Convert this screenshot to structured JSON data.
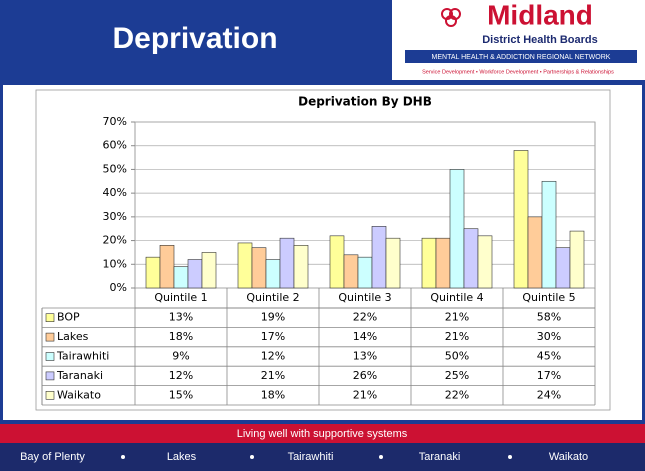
{
  "header": {
    "title": "Deprivation",
    "logo": {
      "name": "Midland",
      "subtitle": "District Health Boards",
      "network": "MENTAL HEALTH & ADDICTION REGIONAL NETWORK",
      "tagline": "Service Development • Workforce Development • Partnerships & Relationships"
    }
  },
  "chart_data": {
    "type": "bar",
    "title": "Deprivation By DHB",
    "categories": [
      "Quintile 1",
      "Quintile 2",
      "Quintile 3",
      "Quintile 4",
      "Quintile 5"
    ],
    "series": [
      {
        "name": "BOP",
        "color": "#ffff99",
        "values": [
          13,
          19,
          22,
          21,
          58
        ],
        "value_labels": [
          "13%",
          "19%",
          "22%",
          "21%",
          "58%"
        ]
      },
      {
        "name": "Lakes",
        "color": "#ffcc99",
        "values": [
          18,
          17,
          14,
          21,
          30
        ],
        "value_labels": [
          "18%",
          "17%",
          "14%",
          "21%",
          "30%"
        ]
      },
      {
        "name": "Tairawhiti",
        "color": "#ccffff",
        "values": [
          9,
          12,
          13,
          50,
          45
        ],
        "value_labels": [
          "9%",
          "12%",
          "13%",
          "50%",
          "45%"
        ]
      },
      {
        "name": "Taranaki",
        "color": "#ccccff",
        "values": [
          12,
          21,
          26,
          25,
          17
        ],
        "value_labels": [
          "12%",
          "21%",
          "26%",
          "25%",
          "17%"
        ]
      },
      {
        "name": "Waikato",
        "color": "#ffffcc",
        "values": [
          15,
          18,
          21,
          22,
          24
        ],
        "value_labels": [
          "15%",
          "18%",
          "21%",
          "22%",
          "24%"
        ]
      }
    ],
    "ylim": [
      0,
      70
    ],
    "yticks": [
      {
        "value": 0,
        "label": "0%"
      },
      {
        "value": 10,
        "label": "10%"
      },
      {
        "value": 20,
        "label": "20%"
      },
      {
        "value": 30,
        "label": "30%"
      },
      {
        "value": 40,
        "label": "40%"
      },
      {
        "value": 50,
        "label": "50%"
      },
      {
        "value": 60,
        "label": "60%"
      },
      {
        "value": 70,
        "label": "70%"
      }
    ],
    "grid": true
  },
  "footer": {
    "slogan": "Living well with supportive systems",
    "regions": [
      "Bay of Plenty",
      "Lakes",
      "Tairawhiti",
      "Taranaki",
      "Waikato"
    ]
  }
}
